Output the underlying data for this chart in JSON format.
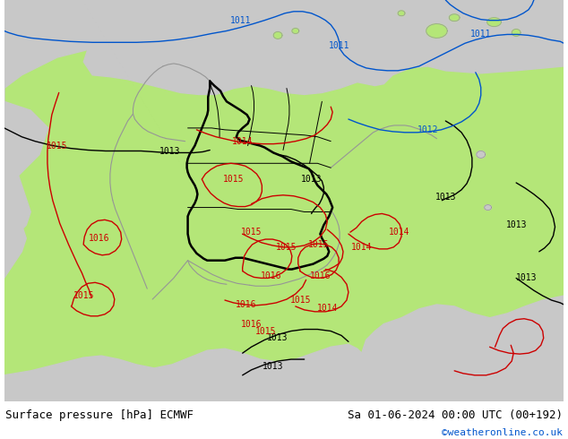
{
  "title_left": "Surface pressure [hPa] ECMWF",
  "title_right": "Sa 01-06-2024 00:00 UTC (00+192)",
  "copyright": "©weatheronline.co.uk",
  "figsize": [
    6.34,
    4.9
  ],
  "dpi": 100,
  "bg_color_sea": "#c8c8c8",
  "bg_color_land": "#b4e678",
  "bg_color_footer": "#ffffff",
  "border_color_main": "#000000",
  "border_color_neighbor": "#969696",
  "isobar_black": "#000000",
  "isobar_red": "#cc0000",
  "isobar_blue": "#0055cc",
  "label_fontsize": 7,
  "footer_fontsize": 9
}
